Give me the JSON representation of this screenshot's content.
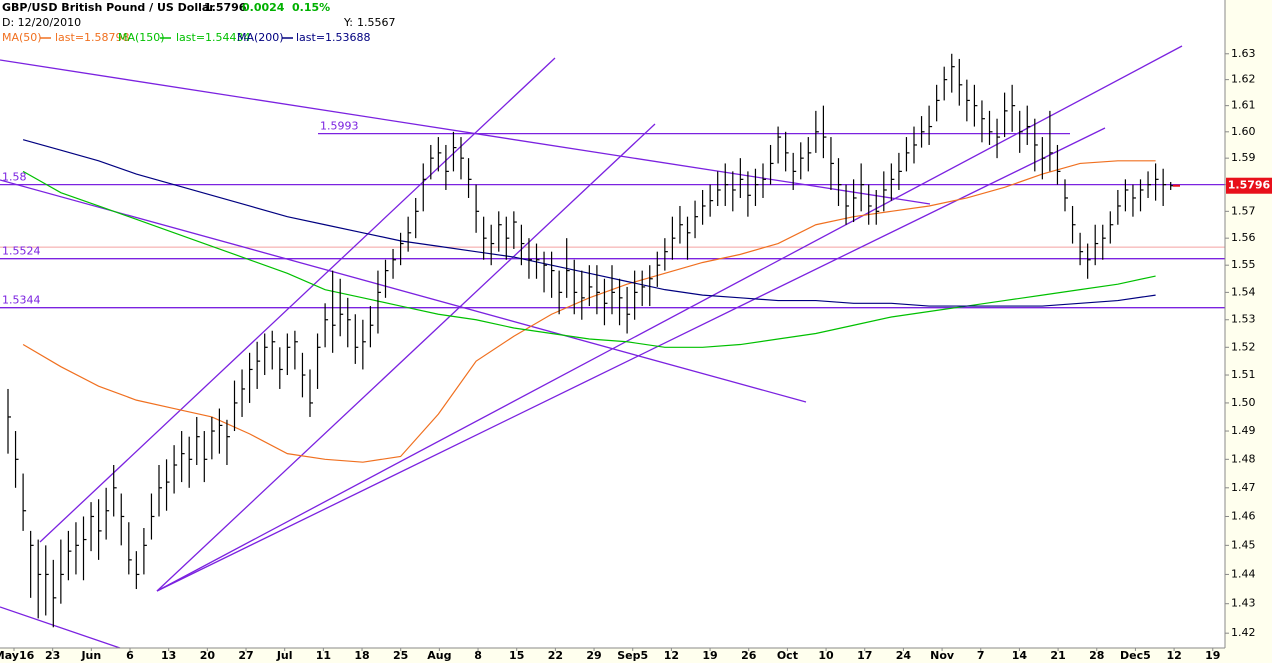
{
  "chart_data": {
    "type": "ohlc",
    "title": "GBP/USD British Pound / US Dollar",
    "last": "1.5796",
    "change": "0.0024",
    "change_pct": "0.15%",
    "date_label": "D: 12/20/2010",
    "cursor_label": "Y:",
    "cursor_value": 1.5567,
    "log_scale": true,
    "ylim": [
      1.415,
      1.651
    ],
    "yticks": [
      1.42,
      1.43,
      1.44,
      1.45,
      1.46,
      1.47,
      1.48,
      1.49,
      {
        "value": 1.5,
        "label": "1.50"
      },
      1.51,
      1.52,
      1.53,
      1.54,
      1.55,
      1.56,
      1.57,
      1.58,
      1.59,
      {
        "value": 1.6,
        "label": "1.60"
      },
      1.61,
      1.62,
      1.63
    ],
    "categories": [
      "May16",
      "23",
      "Jun",
      "6",
      "13",
      "20",
      "27",
      "Jul",
      "11",
      "18",
      "25",
      "Aug",
      "8",
      "15",
      "22",
      "29",
      "Sep5",
      "12",
      "19",
      "26",
      "Oct",
      "10",
      "17",
      "24",
      "Nov",
      "7",
      "14",
      "21",
      "28",
      "Dec5",
      "12",
      "19"
    ],
    "bar_color": "#000000",
    "high": [
      [
        1.505,
        1.49,
        1.475,
        1.455,
        1.452
      ],
      [
        1.45,
        1.445,
        1.452,
        1.455,
        1.458
      ],
      [
        1.46,
        1.465,
        1.466,
        1.47,
        1.478
      ],
      [
        1.468,
        1.458,
        1.448,
        1.456,
        1.468
      ],
      [
        1.478,
        1.48,
        1.485,
        1.49,
        1.488
      ],
      [
        1.495,
        1.49,
        1.495,
        1.498,
        1.494
      ],
      [
        1.508,
        1.512,
        1.518,
        1.522,
        1.525
      ],
      [
        1.526,
        1.52,
        1.525,
        1.526,
        1.518
      ],
      [
        1.512,
        1.525,
        1.536,
        1.548,
        1.545
      ],
      [
        1.538,
        1.532,
        1.53,
        1.535,
        1.548
      ],
      [
        1.552,
        1.556,
        1.562,
        1.568,
        1.575
      ],
      [
        1.588,
        1.595,
        1.598,
        1.595,
        1.6
      ],
      [
        1.598,
        1.59,
        1.58,
        1.568,
        1.565
      ],
      [
        1.57,
        1.568,
        1.57,
        1.565,
        1.56
      ],
      [
        1.558,
        1.555,
        1.555,
        1.548,
        1.56
      ],
      [
        1.552,
        1.548,
        1.55,
        1.55,
        1.545
      ],
      [
        1.55,
        1.545,
        1.542,
        1.548,
        1.548
      ],
      [
        1.55,
        1.555,
        1.56,
        1.568,
        1.572
      ],
      [
        1.568,
        1.574,
        1.578,
        1.58,
        1.585
      ],
      [
        1.588,
        1.585,
        1.59,
        1.585,
        1.586
      ],
      [
        1.588,
        1.595,
        1.602,
        1.6,
        1.592
      ],
      [
        1.596,
        1.598,
        1.608,
        1.61,
        1.598
      ],
      [
        1.59,
        1.58,
        1.582,
        1.588,
        1.58
      ],
      [
        1.578,
        1.585,
        1.588,
        1.592,
        1.598
      ],
      [
        1.602,
        1.606,
        1.61,
        1.618,
        1.625
      ],
      [
        1.63,
        1.628,
        1.62,
        1.618,
        1.612
      ],
      [
        1.608,
        1.605,
        1.615,
        1.618,
        1.608
      ],
      [
        1.61,
        1.605,
        1.598,
        1.608,
        1.595
      ],
      [
        1.582,
        1.572,
        1.562,
        1.558,
        1.565
      ],
      [
        1.565,
        1.57,
        1.578,
        1.582,
        1.58
      ],
      [
        1.582,
        1.585,
        1.588,
        1.586,
        1.581
      ],
      []
    ],
    "low": [
      [
        1.482,
        1.47,
        1.455,
        1.432,
        1.425
      ],
      [
        1.426,
        1.422,
        1.43,
        1.438,
        1.44
      ],
      [
        1.438,
        1.448,
        1.445,
        1.452,
        1.46
      ],
      [
        1.45,
        1.44,
        1.435,
        1.44,
        1.452
      ],
      [
        1.46,
        1.462,
        1.468,
        1.472,
        1.47
      ],
      [
        1.478,
        1.472,
        1.48,
        1.482,
        1.478
      ],
      [
        1.49,
        1.495,
        1.5,
        1.505,
        1.51
      ],
      [
        1.512,
        1.505,
        1.51,
        1.512,
        1.502
      ],
      [
        1.495,
        1.505,
        1.52,
        1.518,
        1.524
      ],
      [
        1.52,
        1.514,
        1.512,
        1.52,
        1.525
      ],
      [
        1.538,
        1.545,
        1.55,
        1.555,
        1.56
      ],
      [
        1.57,
        1.582,
        1.585,
        1.578,
        1.585
      ],
      [
        1.582,
        1.575,
        1.562,
        1.552,
        1.55
      ],
      [
        1.555,
        1.552,
        1.556,
        1.55,
        1.545
      ],
      [
        1.545,
        1.54,
        1.538,
        1.532,
        1.538
      ],
      [
        1.532,
        1.53,
        1.535,
        1.532,
        1.528
      ],
      [
        1.532,
        1.528,
        1.525,
        1.53,
        1.535
      ],
      [
        1.535,
        1.542,
        1.548,
        1.552,
        1.558
      ],
      [
        1.552,
        1.56,
        1.565,
        1.568,
        1.572
      ],
      [
        1.572,
        1.57,
        1.575,
        1.568,
        1.572
      ],
      [
        1.575,
        1.58,
        1.588,
        1.585,
        1.578
      ],
      [
        1.582,
        1.585,
        1.592,
        1.59,
        1.578
      ],
      [
        1.572,
        1.565,
        1.566,
        1.57,
        1.565
      ],
      [
        1.565,
        1.57,
        1.574,
        1.578,
        1.585
      ],
      [
        1.588,
        1.594,
        1.595,
        1.604,
        1.612
      ],
      [
        1.615,
        1.61,
        1.604,
        1.602,
        1.596
      ],
      [
        1.595,
        1.59,
        1.598,
        1.6,
        1.592
      ],
      [
        1.595,
        1.585,
        1.582,
        1.585,
        1.58
      ],
      [
        1.57,
        1.558,
        1.55,
        1.545,
        1.55
      ],
      [
        1.552,
        1.558,
        1.565,
        1.57,
        1.568
      ],
      [
        1.57,
        1.575,
        1.574,
        1.572,
        1.578
      ],
      []
    ],
    "close": [
      [
        1.495,
        1.48,
        1.462,
        1.45,
        1.44
      ],
      [
        1.44,
        1.432,
        1.44,
        1.448,
        1.45
      ],
      [
        1.452,
        1.46,
        1.455,
        1.462,
        1.47
      ],
      [
        1.46,
        1.445,
        1.44,
        1.45,
        1.46
      ],
      [
        1.47,
        1.472,
        1.478,
        1.482,
        1.48
      ],
      [
        1.488,
        1.48,
        1.49,
        1.492,
        1.488
      ],
      [
        1.5,
        1.505,
        1.512,
        1.515,
        1.52
      ],
      [
        1.522,
        1.512,
        1.52,
        1.522,
        1.51
      ],
      [
        1.5,
        1.52,
        1.53,
        1.528,
        1.532
      ],
      [
        1.53,
        1.52,
        1.522,
        1.528,
        1.54
      ],
      [
        1.548,
        1.552,
        1.558,
        1.562,
        1.57
      ],
      [
        1.582,
        1.59,
        1.592,
        1.585,
        1.594
      ],
      [
        1.59,
        1.582,
        1.57,
        1.56,
        1.558
      ],
      [
        1.565,
        1.56,
        1.566,
        1.558,
        1.552
      ],
      [
        1.552,
        1.55,
        1.548,
        1.54,
        1.548
      ],
      [
        1.54,
        1.538,
        1.542,
        1.54,
        1.536
      ],
      [
        1.54,
        1.538,
        1.532,
        1.54,
        1.542
      ],
      [
        1.545,
        1.55,
        1.555,
        1.56,
        1.565
      ],
      [
        1.562,
        1.568,
        1.572,
        1.574,
        1.578
      ],
      [
        1.58,
        1.578,
        1.582,
        1.576,
        1.58
      ],
      [
        1.582,
        1.588,
        1.598,
        1.592,
        1.585
      ],
      [
        1.59,
        1.592,
        1.6,
        1.598,
        1.588
      ],
      [
        1.58,
        1.572,
        1.575,
        1.58,
        1.572
      ],
      [
        1.57,
        1.578,
        1.582,
        1.585,
        1.592
      ],
      [
        1.595,
        1.6,
        1.602,
        1.612,
        1.62
      ],
      [
        1.625,
        1.618,
        1.612,
        1.61,
        1.605
      ],
      [
        1.6,
        1.598,
        1.608,
        1.61,
        1.6
      ],
      [
        1.602,
        1.595,
        1.59,
        1.592,
        1.585
      ],
      [
        1.575,
        1.565,
        1.555,
        1.552,
        1.558
      ],
      [
        1.56,
        1.565,
        1.572,
        1.578,
        1.575
      ],
      [
        1.578,
        1.58,
        1.582,
        1.58,
        1.5796
      ],
      []
    ],
    "series": [
      {
        "name": "MA(50)",
        "last_label": "last=1.58798",
        "color": "#f07020",
        "values": [
          1.521,
          1.513,
          1.506,
          1.501,
          1.498,
          1.495,
          1.489,
          1.482,
          1.48,
          1.479,
          1.481,
          1.496,
          1.515,
          1.524,
          1.532,
          1.538,
          1.543,
          1.547,
          1.551,
          1.554,
          1.558,
          1.565,
          1.568,
          1.57,
          1.572,
          1.575,
          1.579,
          1.584,
          1.588,
          1.589,
          1.589,
          null
        ]
      },
      {
        "name": "MA(150)",
        "last_label": "last=1.54434",
        "color": "#00c000",
        "values": [
          1.585,
          1.577,
          1.572,
          1.567,
          1.562,
          1.557,
          1.552,
          1.547,
          1.541,
          1.538,
          1.535,
          1.532,
          1.53,
          1.527,
          1.525,
          1.523,
          1.522,
          1.52,
          1.52,
          1.521,
          1.523,
          1.525,
          1.528,
          1.531,
          1.533,
          1.535,
          1.537,
          1.539,
          1.541,
          1.543,
          1.546,
          null
        ]
      },
      {
        "name": "MA(200)",
        "last_label": "last=1.53688",
        "color": "#000080",
        "values": [
          1.597,
          1.593,
          1.589,
          1.584,
          1.58,
          1.576,
          1.572,
          1.568,
          1.565,
          1.562,
          1.559,
          1.557,
          1.555,
          1.553,
          1.55,
          1.547,
          1.544,
          1.541,
          1.539,
          1.538,
          1.537,
          1.537,
          1.536,
          1.536,
          1.535,
          1.535,
          1.535,
          1.535,
          1.536,
          1.537,
          1.539,
          null
        ]
      }
    ],
    "levels": [
      1.5993,
      1.58,
      1.5524,
      1.5344
    ],
    "level_color": "#7b22e0",
    "cursor_color": "#f4a0a0",
    "last_color": "#e8101a"
  }
}
